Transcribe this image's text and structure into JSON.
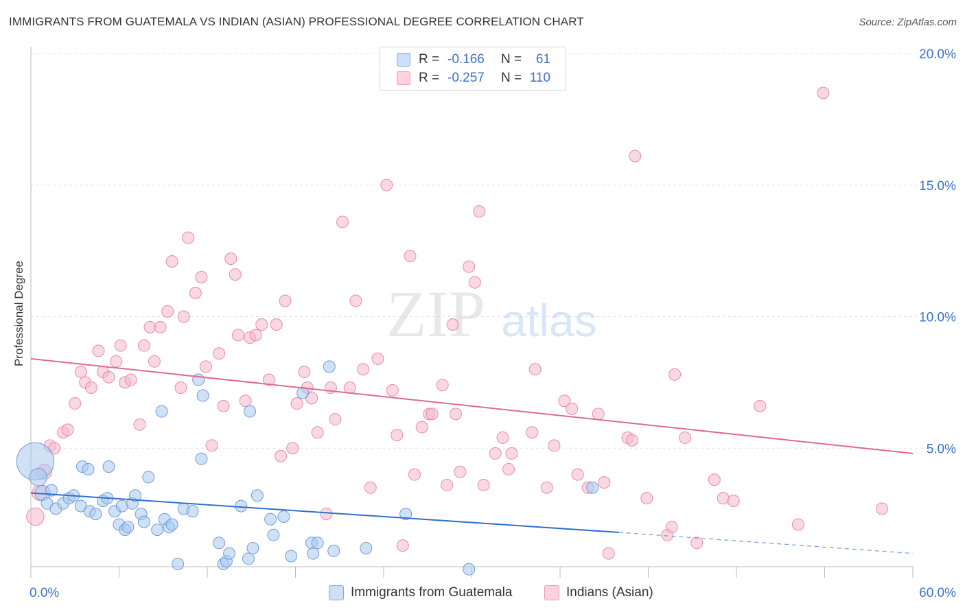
{
  "header": {
    "title": "IMMIGRANTS FROM GUATEMALA VS INDIAN (ASIAN) PROFESSIONAL DEGREE CORRELATION CHART",
    "source": "Source: ZipAtlas.com"
  },
  "watermark": {
    "zip": "ZIP",
    "atlas": "atlas"
  },
  "legend": {
    "rows": [
      {
        "r_label": "R =",
        "r_value": "-0.166",
        "n_label": "N =",
        "n_value": "61",
        "color": "#a9c8ef"
      },
      {
        "r_label": "R =",
        "r_value": "-0.257",
        "n_label": "N =",
        "n_value": "110",
        "color": "#f5b8cb"
      }
    ]
  },
  "bottom_legend": {
    "items": [
      {
        "label": "Immigrants from Guatemala",
        "color": "#a9c8ef"
      },
      {
        "label": "Indians (Asian)",
        "color": "#f5b8cb"
      }
    ]
  },
  "chart_data": {
    "type": "scatter",
    "title": "IMMIGRANTS FROM GUATEMALA VS INDIAN (ASIAN) PROFESSIONAL DEGREE CORRELATION CHART",
    "ylabel": "Professional Degree",
    "xlim": [
      0,
      60
    ],
    "ylim": [
      0,
      20
    ],
    "x_tick_labels": [
      "0.0%",
      "60.0%"
    ],
    "y_tick_labels": [
      "5.0%",
      "10.0%",
      "15.0%",
      "20.0%"
    ],
    "y_tick_values": [
      5,
      10,
      15,
      20
    ],
    "grid": true,
    "colors": {
      "blue": "#3b73c4",
      "blue_fill": "#a9c8ef",
      "pink": "#e06892",
      "pink_fill": "#f5b8cb"
    },
    "series": [
      {
        "name": "Immigrants from Guatemala",
        "color": "#3b73c4",
        "trend": {
          "x0": 0,
          "y0": 3.3,
          "x1": 40,
          "y1": 1.8,
          "dashed_to_x": 60,
          "dashed_to_y": 1.0
        },
        "points": [
          [
            0.3,
            4.5,
            3.2
          ],
          [
            0.5,
            3.9,
            1.5
          ],
          [
            0.8,
            3.3,
            1.3
          ],
          [
            1.1,
            2.9,
            1
          ],
          [
            1.4,
            3.4,
            1
          ],
          [
            1.7,
            2.7,
            1
          ],
          [
            2.2,
            2.9,
            1
          ],
          [
            2.6,
            3.1,
            1
          ],
          [
            2.9,
            3.2,
            1
          ],
          [
            3.5,
            4.3,
            1
          ],
          [
            3.4,
            2.8,
            1
          ],
          [
            3.9,
            4.2,
            1
          ],
          [
            4.0,
            2.6,
            1
          ],
          [
            4.4,
            2.5,
            1
          ],
          [
            4.9,
            3.0,
            1
          ],
          [
            5.2,
            3.1,
            1
          ],
          [
            5.3,
            4.3,
            1
          ],
          [
            5.7,
            2.6,
            1
          ],
          [
            6.0,
            2.1,
            1
          ],
          [
            6.2,
            2.8,
            1
          ],
          [
            6.4,
            1.9,
            1
          ],
          [
            6.6,
            2.0,
            1
          ],
          [
            6.9,
            2.9,
            1
          ],
          [
            7.1,
            3.2,
            1
          ],
          [
            7.5,
            2.5,
            1
          ],
          [
            7.7,
            2.2,
            1
          ],
          [
            8.0,
            3.9,
            1
          ],
          [
            8.6,
            1.9,
            1
          ],
          [
            8.9,
            6.4,
            1
          ],
          [
            9.1,
            2.3,
            1
          ],
          [
            9.4,
            2.0,
            1
          ],
          [
            9.6,
            2.1,
            1
          ],
          [
            10.0,
            0.6,
            1
          ],
          [
            10.4,
            2.7,
            1
          ],
          [
            11.0,
            2.6,
            1
          ],
          [
            11.4,
            7.6,
            1
          ],
          [
            11.6,
            4.6,
            1
          ],
          [
            11.7,
            7.0,
            1
          ],
          [
            12.8,
            1.4,
            1
          ],
          [
            13.1,
            0.6,
            1
          ],
          [
            13.3,
            0.7,
            1
          ],
          [
            13.5,
            1.0,
            1
          ],
          [
            14.3,
            2.8,
            1
          ],
          [
            14.8,
            0.8,
            1
          ],
          [
            14.9,
            6.4,
            1
          ],
          [
            15.1,
            1.2,
            1
          ],
          [
            15.4,
            3.2,
            1
          ],
          [
            16.3,
            2.3,
            1
          ],
          [
            16.5,
            1.7,
            1
          ],
          [
            17.2,
            2.4,
            1
          ],
          [
            17.7,
            0.9,
            1
          ],
          [
            18.5,
            7.1,
            1
          ],
          [
            19.1,
            1.4,
            1
          ],
          [
            19.2,
            1.0,
            1
          ],
          [
            19.5,
            1.4,
            1
          ],
          [
            20.3,
            8.1,
            1
          ],
          [
            20.6,
            1.1,
            1
          ],
          [
            22.8,
            1.2,
            1
          ],
          [
            25.5,
            2.5,
            1
          ],
          [
            29.8,
            0.4,
            1
          ],
          [
            38.2,
            3.5,
            1
          ]
        ]
      },
      {
        "name": "Indians (Asian)",
        "color": "#e06892",
        "trend": {
          "x0": 0,
          "y0": 8.4,
          "x1": 60,
          "y1": 4.8
        },
        "points": [
          [
            0.3,
            2.4,
            1.5
          ],
          [
            0.6,
            3.3,
            1.3
          ],
          [
            0.9,
            4.1,
            1.3
          ],
          [
            1.3,
            5.1,
            1
          ],
          [
            1.6,
            5.0,
            1
          ],
          [
            2.2,
            5.6,
            1
          ],
          [
            2.5,
            5.7,
            1
          ],
          [
            3.0,
            6.7,
            1
          ],
          [
            3.4,
            7.9,
            1
          ],
          [
            3.7,
            7.5,
            1
          ],
          [
            4.1,
            7.3,
            1
          ],
          [
            4.6,
            8.7,
            1
          ],
          [
            4.9,
            7.9,
            1
          ],
          [
            5.3,
            7.7,
            1
          ],
          [
            5.8,
            8.3,
            1
          ],
          [
            6.1,
            8.9,
            1
          ],
          [
            6.4,
            7.5,
            1
          ],
          [
            6.8,
            7.6,
            1
          ],
          [
            7.4,
            5.9,
            1
          ],
          [
            7.7,
            8.9,
            1
          ],
          [
            8.1,
            9.6,
            1
          ],
          [
            8.4,
            8.3,
            1
          ],
          [
            8.8,
            9.6,
            1
          ],
          [
            9.3,
            10.2,
            1
          ],
          [
            9.6,
            12.1,
            1
          ],
          [
            10.2,
            7.3,
            1
          ],
          [
            10.4,
            10.0,
            1
          ],
          [
            10.7,
            13.0,
            1
          ],
          [
            11.2,
            10.9,
            1
          ],
          [
            11.6,
            11.5,
            1
          ],
          [
            11.9,
            8.1,
            1
          ],
          [
            12.3,
            5.1,
            1
          ],
          [
            12.8,
            8.6,
            1
          ],
          [
            13.1,
            6.6,
            1
          ],
          [
            13.6,
            12.2,
            1
          ],
          [
            13.9,
            11.6,
            1
          ],
          [
            14.1,
            9.3,
            1
          ],
          [
            14.6,
            6.8,
            1
          ],
          [
            14.9,
            9.2,
            1
          ],
          [
            15.3,
            9.3,
            1
          ],
          [
            15.7,
            9.7,
            1
          ],
          [
            16.2,
            7.6,
            1
          ],
          [
            16.7,
            9.7,
            1
          ],
          [
            17.0,
            4.7,
            1
          ],
          [
            17.3,
            10.6,
            1
          ],
          [
            17.8,
            5.0,
            1
          ],
          [
            18.1,
            6.7,
            1
          ],
          [
            18.6,
            7.9,
            1
          ],
          [
            18.8,
            7.3,
            1
          ],
          [
            19.1,
            6.9,
            1
          ],
          [
            19.5,
            5.6,
            1
          ],
          [
            20.1,
            2.5,
            1
          ],
          [
            20.4,
            7.3,
            1
          ],
          [
            20.7,
            6.1,
            1
          ],
          [
            21.2,
            13.6,
            1
          ],
          [
            21.7,
            7.3,
            1
          ],
          [
            22.1,
            10.6,
            1
          ],
          [
            22.6,
            8.0,
            1
          ],
          [
            23.1,
            3.5,
            1
          ],
          [
            23.6,
            8.4,
            1
          ],
          [
            24.2,
            15.0,
            1
          ],
          [
            24.6,
            7.2,
            1
          ],
          [
            24.9,
            5.5,
            1
          ],
          [
            25.3,
            1.3,
            1
          ],
          [
            25.8,
            12.3,
            1
          ],
          [
            26.1,
            4.0,
            1
          ],
          [
            26.6,
            5.8,
            1
          ],
          [
            27.1,
            6.3,
            1
          ],
          [
            27.3,
            6.3,
            1
          ],
          [
            28.0,
            7.4,
            1
          ],
          [
            28.3,
            3.6,
            1
          ],
          [
            28.7,
            9.7,
            1
          ],
          [
            28.9,
            6.3,
            1
          ],
          [
            29.2,
            4.1,
            1
          ],
          [
            29.8,
            11.9,
            1
          ],
          [
            30.2,
            11.3,
            1
          ],
          [
            30.5,
            14.0,
            1
          ],
          [
            30.8,
            3.6,
            1
          ],
          [
            31.6,
            4.8,
            1
          ],
          [
            32.1,
            5.4,
            1
          ],
          [
            32.5,
            4.2,
            1
          ],
          [
            32.7,
            4.8,
            1
          ],
          [
            34.1,
            5.6,
            1
          ],
          [
            34.3,
            8.0,
            1
          ],
          [
            35.1,
            3.5,
            1
          ],
          [
            35.6,
            5.1,
            1
          ],
          [
            36.3,
            6.8,
            1
          ],
          [
            36.8,
            6.5,
            1
          ],
          [
            37.2,
            4.0,
            1
          ],
          [
            37.9,
            3.5,
            1
          ],
          [
            38.6,
            6.3,
            1
          ],
          [
            39.0,
            3.7,
            1
          ],
          [
            39.3,
            1.0,
            1
          ],
          [
            40.6,
            5.4,
            1
          ],
          [
            40.9,
            5.3,
            1
          ],
          [
            41.1,
            16.1,
            1
          ],
          [
            41.9,
            3.1,
            1
          ],
          [
            43.3,
            1.7,
            1
          ],
          [
            43.6,
            2.0,
            1
          ],
          [
            43.8,
            7.8,
            1
          ],
          [
            44.5,
            5.4,
            1
          ],
          [
            45.3,
            1.4,
            1
          ],
          [
            46.5,
            3.8,
            1
          ],
          [
            47.1,
            3.1,
            1
          ],
          [
            47.8,
            3.0,
            1
          ],
          [
            49.6,
            6.6,
            1
          ],
          [
            52.2,
            2.1,
            1
          ],
          [
            53.9,
            18.5,
            1
          ],
          [
            57.9,
            2.7,
            1
          ]
        ]
      }
    ]
  }
}
